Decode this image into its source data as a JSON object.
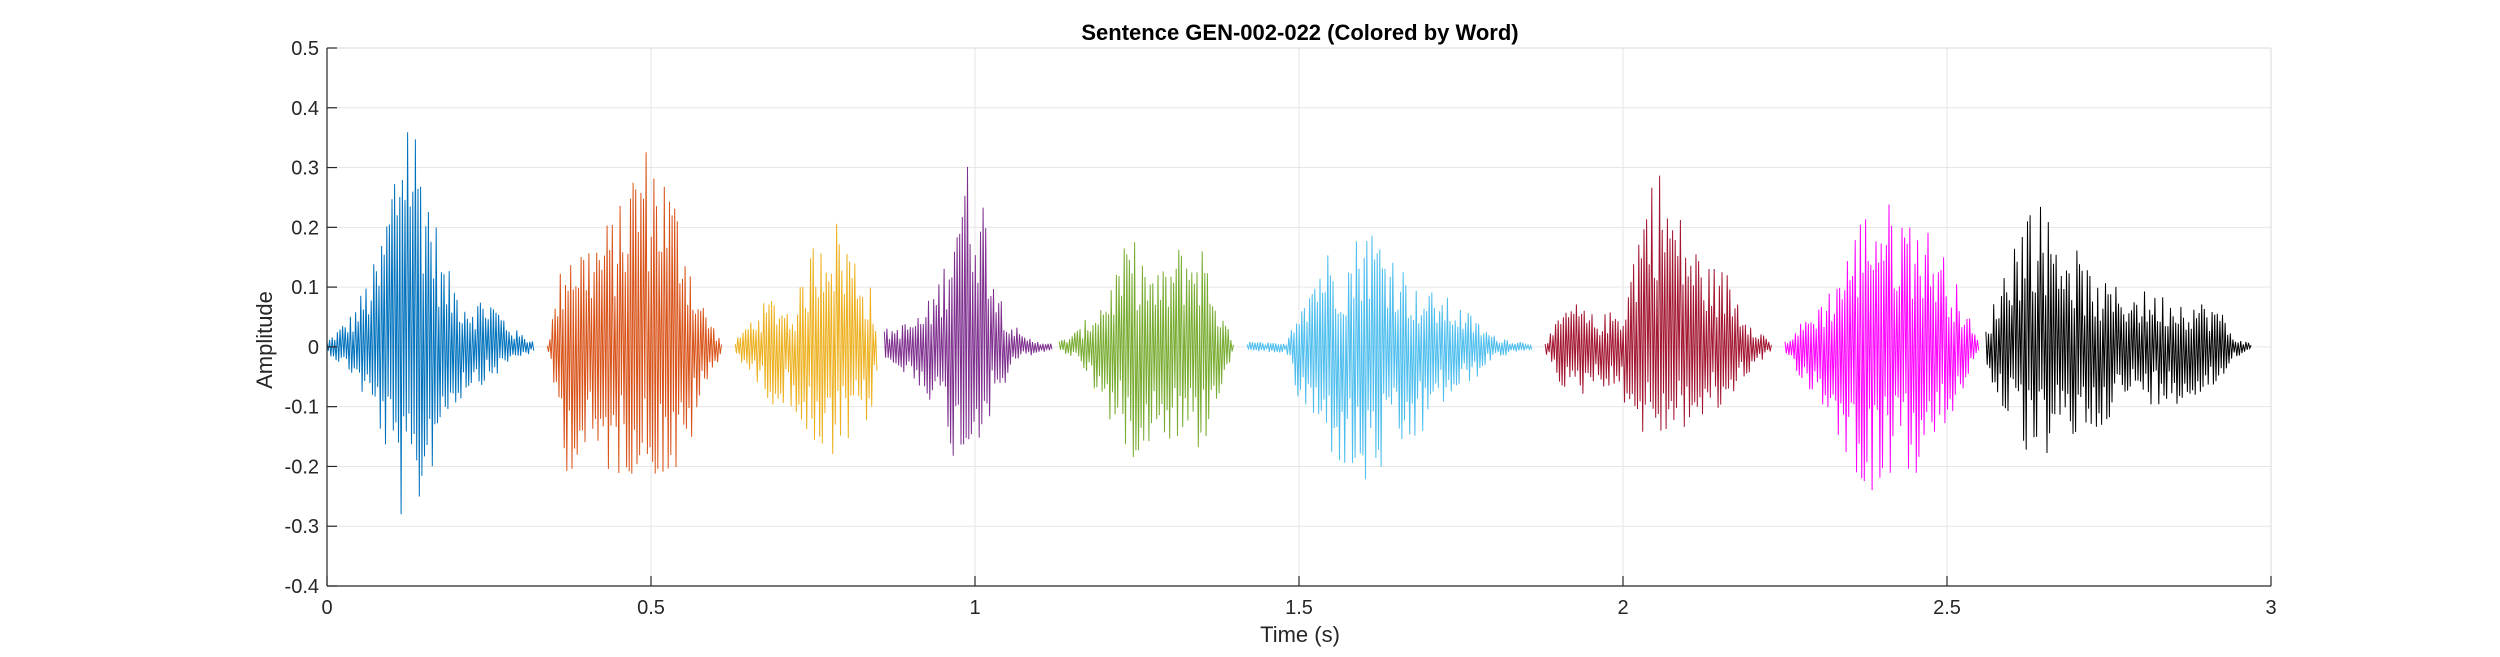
{
  "chart_data": {
    "type": "line",
    "title": "Sentence GEN-002-022 (Colored by Word)",
    "xlabel": "Time (s)",
    "ylabel": "Amplitude",
    "xlim": [
      0,
      3
    ],
    "ylim": [
      -0.4,
      0.5
    ],
    "xticks": [
      0,
      0.5,
      1,
      1.5,
      2,
      2.5,
      3
    ],
    "xtick_labels": [
      "0",
      "0.5",
      "1",
      "1.5",
      "2",
      "2.5",
      "3"
    ],
    "yticks": [
      -0.4,
      -0.3,
      -0.2,
      -0.1,
      0,
      0.1,
      0.2,
      0.3,
      0.4,
      0.5
    ],
    "ytick_labels": [
      "-0.4",
      "-0.3",
      "-0.2",
      "-0.1",
      "0",
      "0.1",
      "0.2",
      "0.3",
      "0.4",
      "0.5"
    ],
    "grid": true,
    "legend": "none",
    "series": [
      {
        "color": "#0072BD",
        "start": 0.0,
        "end": 0.32,
        "envelope": [
          [
            0.0,
            0.01,
            0.01
          ],
          [
            0.04,
            0.06,
            0.05
          ],
          [
            0.08,
            0.16,
            0.14
          ],
          [
            0.11,
            0.38,
            0.26
          ],
          [
            0.12,
            0.48,
            0.33
          ],
          [
            0.15,
            0.33,
            0.26
          ],
          [
            0.18,
            0.14,
            0.13
          ],
          [
            0.22,
            0.08,
            0.07
          ],
          [
            0.25,
            0.09,
            0.06
          ],
          [
            0.29,
            0.03,
            0.02
          ],
          [
            0.32,
            0.01,
            0.01
          ]
        ]
      },
      {
        "color": "#D95319",
        "start": 0.34,
        "end": 0.61,
        "envelope": [
          [
            0.34,
            0.005,
            0.005
          ],
          [
            0.37,
            0.19,
            0.21
          ],
          [
            0.4,
            0.18,
            0.2
          ],
          [
            0.45,
            0.23,
            0.22
          ],
          [
            0.48,
            0.35,
            0.21
          ],
          [
            0.51,
            0.34,
            0.22
          ],
          [
            0.55,
            0.22,
            0.23
          ],
          [
            0.57,
            0.1,
            0.12
          ],
          [
            0.61,
            0.005,
            0.005
          ]
        ]
      },
      {
        "color": "#EDB120",
        "start": 0.63,
        "end": 0.85,
        "envelope": [
          [
            0.63,
            0.01,
            0.01
          ],
          [
            0.66,
            0.06,
            0.06
          ],
          [
            0.69,
            0.09,
            0.1
          ],
          [
            0.72,
            0.06,
            0.1
          ],
          [
            0.75,
            0.18,
            0.2
          ],
          [
            0.77,
            0.24,
            0.21
          ],
          [
            0.8,
            0.2,
            0.18
          ],
          [
            0.84,
            0.1,
            0.12
          ],
          [
            0.85,
            0.03,
            0.03
          ]
        ]
      },
      {
        "color": "#7E2F8E",
        "start": 0.86,
        "end": 1.12,
        "envelope": [
          [
            0.86,
            0.03,
            0.03
          ],
          [
            0.89,
            0.04,
            0.05
          ],
          [
            0.92,
            0.06,
            0.07
          ],
          [
            0.95,
            0.13,
            0.13
          ],
          [
            0.97,
            0.28,
            0.2
          ],
          [
            0.98,
            0.33,
            0.2
          ],
          [
            1.01,
            0.28,
            0.15
          ],
          [
            1.04,
            0.09,
            0.08
          ],
          [
            1.07,
            0.02,
            0.02
          ],
          [
            1.12,
            0.005,
            0.005
          ]
        ]
      },
      {
        "color": "#77AC30",
        "start": 1.13,
        "end": 1.4,
        "envelope": [
          [
            1.13,
            0.01,
            0.01
          ],
          [
            1.16,
            0.03,
            0.02
          ],
          [
            1.2,
            0.09,
            0.11
          ],
          [
            1.24,
            0.19,
            0.19
          ],
          [
            1.28,
            0.12,
            0.15
          ],
          [
            1.32,
            0.18,
            0.16
          ],
          [
            1.35,
            0.18,
            0.18
          ],
          [
            1.38,
            0.06,
            0.07
          ],
          [
            1.4,
            0.005,
            0.005
          ]
        ]
      },
      {
        "color": "#4DBEEE",
        "start": 1.42,
        "end": 1.86,
        "envelope": [
          [
            1.42,
            0.01,
            0.01
          ],
          [
            1.48,
            0.005,
            0.01
          ],
          [
            1.5,
            0.09,
            0.1
          ],
          [
            1.54,
            0.17,
            0.17
          ],
          [
            1.57,
            0.14,
            0.21
          ],
          [
            1.6,
            0.22,
            0.25
          ],
          [
            1.64,
            0.18,
            0.2
          ],
          [
            1.68,
            0.1,
            0.17
          ],
          [
            1.72,
            0.09,
            0.1
          ],
          [
            1.76,
            0.06,
            0.07
          ],
          [
            1.8,
            0.02,
            0.02
          ],
          [
            1.86,
            0.005,
            0.005
          ]
        ]
      },
      {
        "color": "#A2142F",
        "start": 1.88,
        "end": 2.23,
        "envelope": [
          [
            1.88,
            0.01,
            0.01
          ],
          [
            1.92,
            0.08,
            0.1
          ],
          [
            1.96,
            0.05,
            0.06
          ],
          [
            2.0,
            0.07,
            0.09
          ],
          [
            2.03,
            0.25,
            0.15
          ],
          [
            2.05,
            0.32,
            0.16
          ],
          [
            2.09,
            0.22,
            0.14
          ],
          [
            2.13,
            0.14,
            0.13
          ],
          [
            2.16,
            0.13,
            0.1
          ],
          [
            2.19,
            0.06,
            0.05
          ],
          [
            2.23,
            0.005,
            0.005
          ]
        ]
      },
      {
        "color": "#FF00FF",
        "start": 2.25,
        "end": 2.55,
        "envelope": [
          [
            2.25,
            0.01,
            0.01
          ],
          [
            2.29,
            0.06,
            0.08
          ],
          [
            2.32,
            0.1,
            0.12
          ],
          [
            2.36,
            0.2,
            0.22
          ],
          [
            2.38,
            0.26,
            0.25
          ],
          [
            2.42,
            0.24,
            0.21
          ],
          [
            2.46,
            0.22,
            0.22
          ],
          [
            2.5,
            0.15,
            0.14
          ],
          [
            2.55,
            0.005,
            0.005
          ]
        ]
      },
      {
        "color": "#000000",
        "start": 2.56,
        "end": 2.97,
        "envelope": [
          [
            2.56,
            0.03,
            0.04
          ],
          [
            2.6,
            0.18,
            0.14
          ],
          [
            2.63,
            0.26,
            0.2
          ],
          [
            2.68,
            0.2,
            0.17
          ],
          [
            2.73,
            0.11,
            0.14
          ],
          [
            2.78,
            0.1,
            0.09
          ],
          [
            2.83,
            0.09,
            0.1
          ],
          [
            2.88,
            0.08,
            0.09
          ],
          [
            2.92,
            0.07,
            0.07
          ],
          [
            2.94,
            0.02,
            0.02
          ],
          [
            2.97,
            0.005,
            0.005
          ]
        ]
      }
    ]
  }
}
